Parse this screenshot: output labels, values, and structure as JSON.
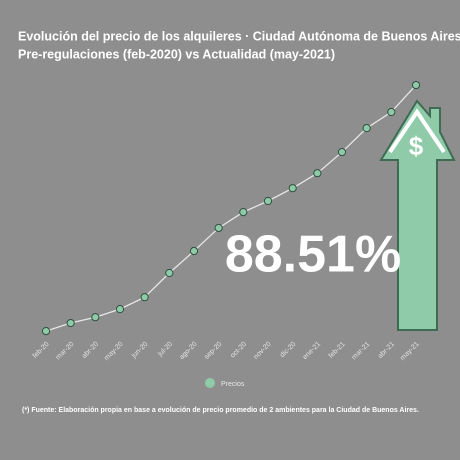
{
  "chart_data": {
    "type": "line",
    "title": "Evolución del precio de los alquileres · Ciudad Autónoma de Buenos Aires",
    "subtitle": "Pre-regulaciones (feb-2020) vs Actualidad (may-2021)",
    "categories": [
      "feb-20",
      "mar-20",
      "abr-20",
      "may-20",
      "jun-20",
      "jul-20",
      "ago-20",
      "sep-20",
      "oct-20",
      "nov-20",
      "dic-20",
      "ene-21",
      "feb-21",
      "mar-21",
      "abr-21",
      "may-21"
    ],
    "series": [
      {
        "name": "Precios",
        "color": "#8fcba9",
        "line_color": "#e6e6e6",
        "values": [
          100,
          102.9,
          105.0,
          107.9,
          112.2,
          120.9,
          128.8,
          137.1,
          142.8,
          146.8,
          151.4,
          156.8,
          164.4,
          173.0,
          178.8,
          188.51
        ]
      }
    ],
    "ylim": [
      95,
      195
    ],
    "annotation": "88.51%",
    "arrow_label": "$",
    "note": "(*) Fuente: Elaboración propia en base a evolución de precio promedio de 2 ambientes para la Ciudad de Buenos Aires."
  }
}
